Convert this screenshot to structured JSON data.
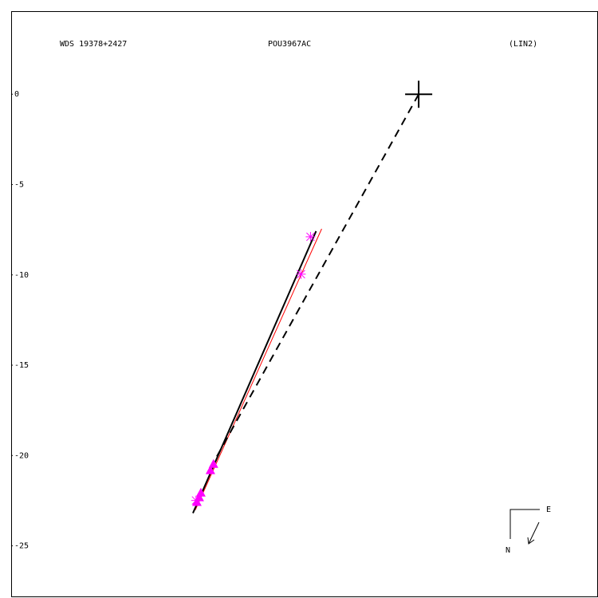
{
  "chart_data": {
    "type": "scatter",
    "title": "WDS 19378+2427",
    "subtitle": "POU3967AC",
    "annotation": "(LIN2)",
    "compass": {
      "east": "E",
      "north": "N"
    },
    "xlim": [
      -22.6,
      9.9
    ],
    "ylim": [
      -27.8,
      4.6
    ],
    "yticks": [
      0,
      -5,
      -10,
      -15,
      -20,
      -25
    ],
    "series": [
      {
        "marker": "line",
        "color": "#ff0000",
        "x": [
          -12.39,
          -5.38
        ],
        "y": [
          -23.02,
          -7.45
        ]
      },
      {
        "marker": "dashed",
        "color": "#000000",
        "x": [
          0,
          -11.5
        ],
        "y": [
          0,
          -20.6
        ]
      },
      {
        "marker": "line",
        "color": "#000000",
        "x": [
          -12.52,
          -5.69
        ],
        "y": [
          -23.19,
          -7.58
        ]
      },
      {
        "marker": "triangle",
        "color": "#ff00ff",
        "x": [
          -11.38,
          -11.55,
          -12.08,
          -12.17,
          -12.3
        ],
        "y": [
          -20.46,
          -20.81,
          -22.05,
          -22.31,
          -22.57
        ]
      },
      {
        "marker": "asterisk",
        "color": "#ff00ff",
        "x": [
          -6.0,
          -6.53,
          -12.35
        ],
        "y": [
          -7.89,
          -9.96,
          -22.49
        ]
      },
      {
        "marker": "plus",
        "color": "#000000",
        "x": [
          0
        ],
        "y": [
          0
        ]
      }
    ]
  }
}
